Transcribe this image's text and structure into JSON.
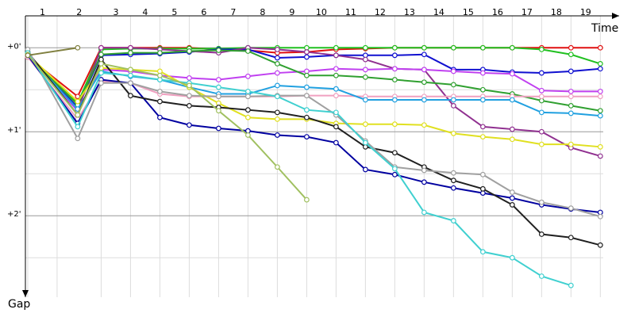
{
  "chart_data": {
    "type": "line",
    "x_label": "Time",
    "y_label": "Gap",
    "laps": [
      1,
      2,
      3,
      4,
      5,
      6,
      7,
      8,
      9,
      10,
      11,
      12,
      13,
      14,
      15,
      16,
      17,
      18,
      19
    ],
    "xticks": [
      0,
      1,
      2.5,
      3.5,
      4.5,
      5.5,
      6.5,
      7.5,
      8.5,
      9.5,
      10.5,
      11.5,
      12.5,
      13.5,
      14.5,
      15.5,
      16.5,
      17.5,
      18.5,
      19.5
    ],
    "xlim": [
      -0.08,
      20.14
    ],
    "x": [
      0,
      1.7,
      2.5,
      3.5,
      4.5,
      5.5,
      6.5,
      7.5,
      8.5,
      9.5,
      10.5,
      11.5,
      12.5,
      13.5,
      14.5,
      15.5,
      16.5,
      17.5,
      18.5,
      19.5
    ],
    "ylim": [
      -0.38,
      2.97
    ],
    "y_inverted": true,
    "yticks": [
      {
        "value": 0,
        "label": "+0'"
      },
      {
        "value": 1,
        "label": "+1'"
      },
      {
        "value": 2,
        "label": "+2'"
      }
    ],
    "minor_yticks": [
      0.5,
      1.5,
      2.5
    ],
    "grid": true,
    "series": [
      {
        "color": "#e01010",
        "values": [
          0.11,
          0.58,
          0,
          0,
          0,
          0,
          0.02,
          0.03,
          0.06,
          0.05,
          0.02,
          0.01,
          0,
          0,
          0,
          0,
          0,
          0,
          0,
          0
        ]
      },
      {
        "color": "#20c020",
        "values": [
          0.09,
          0.66,
          0.02,
          0.01,
          0.01,
          0.01,
          0.01,
          0,
          0,
          0,
          0,
          0,
          0,
          0,
          0,
          0,
          0,
          0.02,
          0.08,
          0.19
        ]
      },
      {
        "color": "#1010d0",
        "values": [
          0.09,
          0.71,
          0.09,
          0.08,
          0.07,
          0.05,
          0.02,
          0.02,
          0.12,
          0.11,
          0.09,
          0.09,
          0.09,
          0.08,
          0.26,
          0.26,
          0.29,
          0.3,
          0.28,
          0.25
        ]
      },
      {
        "color": "#903090",
        "values": [
          0.08,
          0.75,
          0,
          0,
          0.02,
          0.04,
          0.06,
          0,
          0.02,
          0.05,
          0.09,
          0.14,
          0.25,
          0.26,
          0.69,
          0.94,
          0.97,
          1.0,
          1.19,
          1.29
        ]
      },
      {
        "color": "#c040f0",
        "values": [
          0.09,
          0.75,
          0.26,
          0.28,
          0.33,
          0.36,
          0.38,
          0.34,
          0.3,
          0.28,
          0.25,
          0.26,
          0.25,
          0.26,
          0.28,
          0.3,
          0.31,
          0.51,
          0.52,
          0.52
        ]
      },
      {
        "color": "#30a030",
        "values": [
          0.09,
          0.68,
          0.08,
          0.06,
          0.06,
          0.04,
          0.03,
          0.04,
          0.19,
          0.33,
          0.33,
          0.35,
          0.38,
          0.41,
          0.44,
          0.5,
          0.55,
          0.63,
          0.69,
          0.75
        ]
      },
      {
        "color": "#f0a0c0",
        "values": [
          0.11,
          0.85,
          0.4,
          0.42,
          0.55,
          0.58,
          0.58,
          0.58,
          0.58,
          0.57,
          0.57,
          0.58,
          0.58,
          0.58,
          0.58,
          0.58,
          0.58,
          0.58,
          0.58,
          0.58
        ]
      },
      {
        "color": "#20a0e0",
        "values": [
          0.09,
          0.73,
          0.28,
          0.34,
          0.38,
          0.47,
          0.55,
          0.55,
          0.45,
          0.47,
          0.49,
          0.62,
          0.62,
          0.62,
          0.62,
          0.62,
          0.62,
          0.77,
          0.78,
          0.81
        ]
      },
      {
        "color": "#e0e020",
        "values": [
          0.08,
          0.64,
          0.24,
          0.26,
          0.28,
          0.47,
          0.66,
          0.83,
          0.85,
          0.85,
          0.9,
          0.91,
          0.91,
          0.92,
          1.02,
          1.06,
          1.09,
          1.15,
          1.15,
          1.18
        ]
      },
      {
        "color": "#0000a0",
        "values": [
          0.09,
          0.9,
          0.38,
          0.42,
          0.83,
          0.92,
          0.96,
          0.99,
          1.04,
          1.06,
          1.13,
          1.45,
          1.51,
          1.6,
          1.67,
          1.73,
          1.79,
          1.87,
          1.92,
          1.96
        ]
      },
      {
        "color": "#202020",
        "values": [
          0.05,
          0.8,
          0.14,
          0.57,
          0.64,
          0.69,
          0.71,
          0.74,
          0.77,
          0.83,
          0.94,
          1.18,
          1.25,
          1.42,
          1.58,
          1.68,
          1.87,
          2.22,
          2.26,
          2.35
        ]
      },
      {
        "color": "#a0a0a0",
        "values": [
          0.02,
          1.08,
          0.42,
          0.42,
          0.52,
          0.57,
          0.58,
          0.58,
          0.57,
          0.57,
          0.8,
          1.11,
          1.42,
          1.46,
          1.49,
          1.51,
          1.72,
          1.84,
          1.91,
          2.01
        ]
      },
      {
        "color": "#40d0d0",
        "values": [
          0.06,
          0.94,
          0.3,
          0.33,
          0.38,
          0.42,
          0.47,
          0.52,
          0.58,
          0.74,
          0.77,
          1.13,
          1.44,
          1.96,
          2.06,
          2.43,
          2.5,
          2.72,
          2.83,
          null
        ]
      },
      {
        "color": "#a0c060",
        "values": [
          0.08,
          0.8,
          0.19,
          0.26,
          0.33,
          0.45,
          0.75,
          1.04,
          1.42,
          1.81,
          null,
          null,
          null,
          null,
          null,
          null,
          null,
          null,
          null,
          null
        ]
      },
      {
        "color": "#808040",
        "values": [
          0.09,
          0,
          null,
          null,
          null,
          null,
          null,
          null,
          null,
          null,
          null,
          null,
          null,
          null,
          null,
          null,
          null,
          null,
          null,
          null
        ]
      }
    ]
  }
}
